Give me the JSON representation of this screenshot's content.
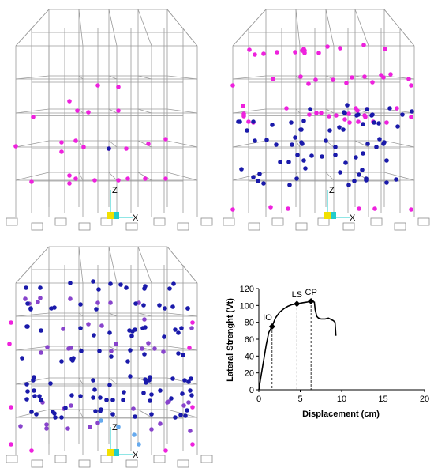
{
  "colors": {
    "frame": "#9a9a9a",
    "hinge_pink": "#ee22dd",
    "hinge_blue": "#1a1aaa",
    "hinge_purple": "#8844cc",
    "hinge_light_blue": "#66aaee",
    "hinge_cyan": "#33dddd",
    "origin_yellow": "#f2e000",
    "origin_cyan": "#22cccc",
    "curve": "#000000"
  },
  "panels": [
    {
      "id": "a",
      "stage": "IO"
    },
    {
      "id": "b",
      "stage": "LS"
    },
    {
      "id": "c",
      "stage": "CP"
    }
  ],
  "axis_glyphs": {
    "x": "X",
    "z": "Z"
  },
  "chart_data": {
    "type": "line",
    "xlabel": "Displacement (cm)",
    "ylabel": "Lateral Strenght (Vt)",
    "xlim": [
      0,
      20
    ],
    "ylim": [
      0,
      120
    ],
    "xticks": [
      0,
      5,
      10,
      15,
      20
    ],
    "yticks": [
      0,
      20,
      40,
      60,
      80,
      100,
      120
    ],
    "grid": false,
    "curve": {
      "x": [
        0,
        0.3,
        0.6,
        0.9,
        1.2,
        1.6,
        2.0,
        2.5,
        3.0,
        3.5,
        4.0,
        4.6,
        5.2,
        5.8,
        6.3,
        6.7,
        6.8,
        7.0,
        7.2,
        7.5,
        8.0,
        8.4,
        8.8,
        9.0,
        9.2,
        9.3
      ],
      "y": [
        0,
        18,
        36,
        54,
        68,
        75,
        85,
        92,
        96,
        99,
        101,
        102,
        103,
        104,
        105,
        104,
        95,
        87,
        85,
        84,
        84,
        85,
        83,
        82,
        80,
        64
      ]
    },
    "points": [
      {
        "label": "IO",
        "x": 1.6,
        "y": 75
      },
      {
        "label": "LS",
        "x": 4.6,
        "y": 102
      },
      {
        "label": "CP",
        "x": 6.3,
        "y": 105
      }
    ]
  }
}
